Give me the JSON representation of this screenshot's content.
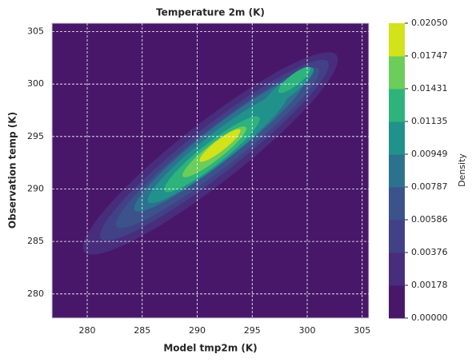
{
  "chart_data": {
    "type": "contour",
    "title": "Temperature 2m (K)",
    "xlabel": "Model tmp2m (K)",
    "ylabel": "Observation temp (K)",
    "colorbar_label": "Density",
    "xlim": [
      276.8,
      305.6
    ],
    "ylim": [
      277.7,
      305.8
    ],
    "xticks": [
      280,
      285,
      290,
      295,
      300,
      305
    ],
    "yticks": [
      280,
      285,
      290,
      295,
      300,
      305
    ],
    "grid": true,
    "levels": [
      {
        "value": 0,
        "label": "0.00000"
      },
      {
        "value": 0.00178,
        "label": "0.00178"
      },
      {
        "value": 0.00376,
        "label": "0.00376"
      },
      {
        "value": 0.00586,
        "label": "0.00586"
      },
      {
        "value": 0.00787,
        "label": "0.00787"
      },
      {
        "value": 0.00949,
        "label": "0.00949"
      },
      {
        "value": 0.01135,
        "label": "0.01135"
      },
      {
        "value": 0.01431,
        "label": "0.01431"
      },
      {
        "value": 0.01747,
        "label": "0.01747"
      },
      {
        "value": 0.0205,
        "label": "0.02050"
      }
    ],
    "colors": [
      "#481769",
      "#472d7b",
      "#424086",
      "#3b528b",
      "#2c728e",
      "#21918c",
      "#2eb37c",
      "#6ccd5a",
      "#d2e21b"
    ]
  }
}
